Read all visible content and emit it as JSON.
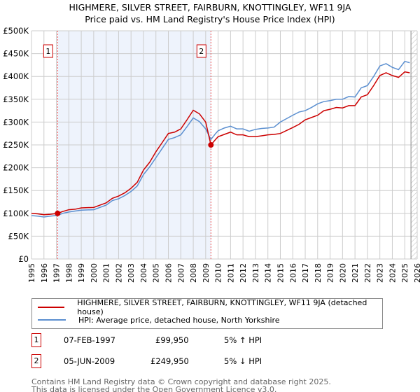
{
  "title": "HIGHMERE, SILVER STREET, FAIRBURN, KNOTTINGLEY, WF11 9JA",
  "subtitle": "Price paid vs. HM Land Registry's House Price Index (HPI)",
  "chart_data": {
    "type": "line",
    "ylim": [
      0,
      500000
    ],
    "xlim": [
      1995,
      2026
    ],
    "y_ticks": [
      0,
      50000,
      100000,
      150000,
      200000,
      250000,
      300000,
      350000,
      400000,
      450000,
      500000
    ],
    "y_tick_labels": [
      "£0",
      "£50K",
      "£100K",
      "£150K",
      "£200K",
      "£250K",
      "£300K",
      "£350K",
      "£400K",
      "£450K",
      "£500K"
    ],
    "x_ticks": [
      1995,
      1996,
      1997,
      1998,
      1999,
      2000,
      2001,
      2002,
      2003,
      2004,
      2005,
      2006,
      2007,
      2008,
      2009,
      2010,
      2011,
      2012,
      2013,
      2014,
      2015,
      2016,
      2017,
      2018,
      2019,
      2020,
      2021,
      2022,
      2023,
      2024,
      2025,
      2026
    ],
    "grid": true,
    "forecast_hatch_from": 2025.5,
    "series": [
      {
        "name": "HIGHMERE, SILVER STREET, FAIRBURN, KNOTTINGLEY, WF11 9JA (detached house)",
        "color": "#cc0000",
        "x": [
          1995,
          1995.5,
          1996,
          1996.5,
          1997.1,
          1997.5,
          1998,
          1998.5,
          1999,
          2000,
          2000.5,
          2001,
          2001.5,
          2002,
          2002.5,
          2003,
          2003.5,
          2004,
          2004.5,
          2005,
          2005.5,
          2006,
          2006.5,
          2007,
          2007.5,
          2008,
          2008.5,
          2009,
          2009.42,
          2009.8,
          2010,
          2010.5,
          2011,
          2011.5,
          2012,
          2012.5,
          2013,
          2013.5,
          2014,
          2014.5,
          2015,
          2016,
          2016.5,
          2017,
          2017.5,
          2018,
          2018.5,
          2019,
          2019.5,
          2020,
          2020.5,
          2021,
          2021.5,
          2022,
          2022.5,
          2023,
          2023.5,
          2024,
          2024.5,
          2025,
          2025.4
        ],
        "y": [
          100000,
          99000,
          97000,
          98000,
          99950,
          104000,
          108000,
          109000,
          112000,
          113000,
          118000,
          123000,
          133000,
          138000,
          145000,
          155000,
          168000,
          195000,
          212000,
          235000,
          255000,
          275000,
          278000,
          285000,
          305000,
          326000,
          318000,
          300000,
          249950,
          262000,
          268000,
          273000,
          278000,
          272000,
          272000,
          268000,
          268000,
          270000,
          272000,
          273000,
          275000,
          288000,
          295000,
          305000,
          310000,
          315000,
          325000,
          328000,
          332000,
          331000,
          336000,
          336000,
          355000,
          360000,
          380000,
          402000,
          408000,
          402000,
          398000,
          410000,
          408000
        ]
      },
      {
        "name": "HPI: Average price, detached house, North Yorkshire",
        "color": "#5b8fd0",
        "x": [
          1995,
          1995.5,
          1996,
          1996.5,
          1997.1,
          1997.5,
          1998,
          1998.5,
          1999,
          2000,
          2000.5,
          2001,
          2001.5,
          2002,
          2002.5,
          2003,
          2003.5,
          2004,
          2004.5,
          2005,
          2005.5,
          2006,
          2006.5,
          2007,
          2007.5,
          2008,
          2008.5,
          2009,
          2009.42,
          2009.8,
          2010,
          2010.5,
          2011,
          2011.5,
          2012,
          2012.5,
          2013,
          2013.5,
          2014,
          2014.5,
          2015,
          2016,
          2016.5,
          2017,
          2017.5,
          2018,
          2018.5,
          2019,
          2019.5,
          2020,
          2020.5,
          2021,
          2021.5,
          2022,
          2022.5,
          2023,
          2023.5,
          2024,
          2024.5,
          2025,
          2025.4
        ],
        "y": [
          95000,
          94000,
          92000,
          94000,
          95500,
          100000,
          103000,
          105000,
          107000,
          108000,
          113000,
          118000,
          128000,
          132000,
          139000,
          148000,
          160000,
          185000,
          202000,
          222000,
          242000,
          262000,
          266000,
          272000,
          290000,
          309000,
          301000,
          285000,
          262000,
          275000,
          281000,
          287000,
          291000,
          285000,
          285000,
          280000,
          284000,
          286000,
          287000,
          289000,
          300000,
          315000,
          322000,
          325000,
          332000,
          340000,
          345000,
          347000,
          350000,
          350000,
          356000,
          355000,
          375000,
          380000,
          400000,
          423000,
          428000,
          420000,
          415000,
          433000,
          430000
        ]
      }
    ],
    "sales": [
      {
        "label": "1",
        "x": 1997.1,
        "y": 99950,
        "date": "07-FEB-1997",
        "price": "£99,950",
        "hpi": "5% ↑ HPI"
      },
      {
        "label": "2",
        "x": 2009.42,
        "y": 249950,
        "date": "05-JUN-2009",
        "price": "£249,950",
        "hpi": "5% ↓ HPI"
      }
    ]
  },
  "footer": {
    "line1": "Contains HM Land Registry data © Crown copyright and database right 2025.",
    "line2": "This data is licensed under the Open Government Licence v3.0."
  }
}
